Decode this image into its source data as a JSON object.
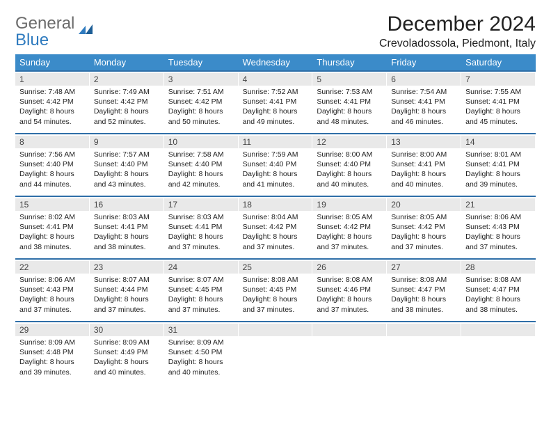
{
  "brand": {
    "part1": "General",
    "part2": "Blue"
  },
  "title": "December 2024",
  "location": "Crevoladossola, Piedmont, Italy",
  "colors": {
    "header_bg": "#3b8bc9",
    "week_border": "#2f6fa8",
    "daynum_bg": "#e9e9e9",
    "text": "#212121",
    "logo_gray": "#6b6b6b",
    "logo_blue": "#2f7bbf"
  },
  "day_names": [
    "Sunday",
    "Monday",
    "Tuesday",
    "Wednesday",
    "Thursday",
    "Friday",
    "Saturday"
  ],
  "weeks": [
    [
      {
        "num": "1",
        "sunrise": "7:48 AM",
        "sunset": "4:42 PM",
        "daylight": "8 hours and 54 minutes."
      },
      {
        "num": "2",
        "sunrise": "7:49 AM",
        "sunset": "4:42 PM",
        "daylight": "8 hours and 52 minutes."
      },
      {
        "num": "3",
        "sunrise": "7:51 AM",
        "sunset": "4:42 PM",
        "daylight": "8 hours and 50 minutes."
      },
      {
        "num": "4",
        "sunrise": "7:52 AM",
        "sunset": "4:41 PM",
        "daylight": "8 hours and 49 minutes."
      },
      {
        "num": "5",
        "sunrise": "7:53 AM",
        "sunset": "4:41 PM",
        "daylight": "8 hours and 48 minutes."
      },
      {
        "num": "6",
        "sunrise": "7:54 AM",
        "sunset": "4:41 PM",
        "daylight": "8 hours and 46 minutes."
      },
      {
        "num": "7",
        "sunrise": "7:55 AM",
        "sunset": "4:41 PM",
        "daylight": "8 hours and 45 minutes."
      }
    ],
    [
      {
        "num": "8",
        "sunrise": "7:56 AM",
        "sunset": "4:40 PM",
        "daylight": "8 hours and 44 minutes."
      },
      {
        "num": "9",
        "sunrise": "7:57 AM",
        "sunset": "4:40 PM",
        "daylight": "8 hours and 43 minutes."
      },
      {
        "num": "10",
        "sunrise": "7:58 AM",
        "sunset": "4:40 PM",
        "daylight": "8 hours and 42 minutes."
      },
      {
        "num": "11",
        "sunrise": "7:59 AM",
        "sunset": "4:40 PM",
        "daylight": "8 hours and 41 minutes."
      },
      {
        "num": "12",
        "sunrise": "8:00 AM",
        "sunset": "4:40 PM",
        "daylight": "8 hours and 40 minutes."
      },
      {
        "num": "13",
        "sunrise": "8:00 AM",
        "sunset": "4:41 PM",
        "daylight": "8 hours and 40 minutes."
      },
      {
        "num": "14",
        "sunrise": "8:01 AM",
        "sunset": "4:41 PM",
        "daylight": "8 hours and 39 minutes."
      }
    ],
    [
      {
        "num": "15",
        "sunrise": "8:02 AM",
        "sunset": "4:41 PM",
        "daylight": "8 hours and 38 minutes."
      },
      {
        "num": "16",
        "sunrise": "8:03 AM",
        "sunset": "4:41 PM",
        "daylight": "8 hours and 38 minutes."
      },
      {
        "num": "17",
        "sunrise": "8:03 AM",
        "sunset": "4:41 PM",
        "daylight": "8 hours and 37 minutes."
      },
      {
        "num": "18",
        "sunrise": "8:04 AM",
        "sunset": "4:42 PM",
        "daylight": "8 hours and 37 minutes."
      },
      {
        "num": "19",
        "sunrise": "8:05 AM",
        "sunset": "4:42 PM",
        "daylight": "8 hours and 37 minutes."
      },
      {
        "num": "20",
        "sunrise": "8:05 AM",
        "sunset": "4:42 PM",
        "daylight": "8 hours and 37 minutes."
      },
      {
        "num": "21",
        "sunrise": "8:06 AM",
        "sunset": "4:43 PM",
        "daylight": "8 hours and 37 minutes."
      }
    ],
    [
      {
        "num": "22",
        "sunrise": "8:06 AM",
        "sunset": "4:43 PM",
        "daylight": "8 hours and 37 minutes."
      },
      {
        "num": "23",
        "sunrise": "8:07 AM",
        "sunset": "4:44 PM",
        "daylight": "8 hours and 37 minutes."
      },
      {
        "num": "24",
        "sunrise": "8:07 AM",
        "sunset": "4:45 PM",
        "daylight": "8 hours and 37 minutes."
      },
      {
        "num": "25",
        "sunrise": "8:08 AM",
        "sunset": "4:45 PM",
        "daylight": "8 hours and 37 minutes."
      },
      {
        "num": "26",
        "sunrise": "8:08 AM",
        "sunset": "4:46 PM",
        "daylight": "8 hours and 37 minutes."
      },
      {
        "num": "27",
        "sunrise": "8:08 AM",
        "sunset": "4:47 PM",
        "daylight": "8 hours and 38 minutes."
      },
      {
        "num": "28",
        "sunrise": "8:08 AM",
        "sunset": "4:47 PM",
        "daylight": "8 hours and 38 minutes."
      }
    ],
    [
      {
        "num": "29",
        "sunrise": "8:09 AM",
        "sunset": "4:48 PM",
        "daylight": "8 hours and 39 minutes."
      },
      {
        "num": "30",
        "sunrise": "8:09 AM",
        "sunset": "4:49 PM",
        "daylight": "8 hours and 40 minutes."
      },
      {
        "num": "31",
        "sunrise": "8:09 AM",
        "sunset": "4:50 PM",
        "daylight": "8 hours and 40 minutes."
      },
      null,
      null,
      null,
      null
    ]
  ],
  "labels": {
    "sunrise": "Sunrise:",
    "sunset": "Sunset:",
    "daylight": "Daylight:"
  }
}
